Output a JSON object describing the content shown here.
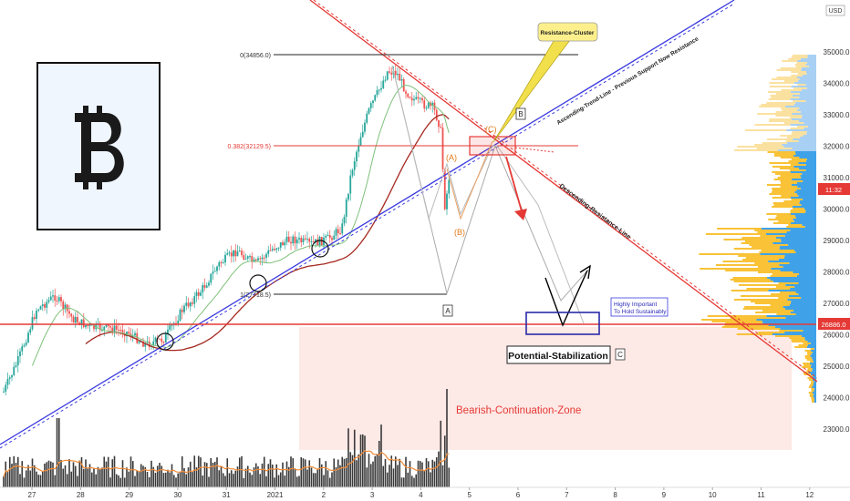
{
  "chart_data": {
    "type": "candlestick",
    "currency": "USD",
    "price_axis": {
      "min": 23000,
      "max": 35000,
      "ticks": [
        "35000.0",
        "34000.0",
        "33000.0",
        "32000.0",
        "31000.0",
        "30000.0",
        "29000.0",
        "28000.0",
        "27000.0",
        "26000.0",
        "25000.0",
        "24000.0",
        "23000.0"
      ]
    },
    "time_axis": {
      "ticks": [
        "27",
        "28",
        "29",
        "30",
        "31",
        "2021",
        "2",
        "3",
        "4",
        "5",
        "6",
        "7",
        "8",
        "9",
        "10",
        "11",
        "12"
      ]
    },
    "current_price": "11:32",
    "horizontal_support": "26886.0",
    "fibonacci": [
      {
        "label": "0(34856.0)",
        "value": 34856.0
      },
      {
        "label": "0.382(32129.5)",
        "value": 32129.5
      },
      {
        "label": "1(27718.5)",
        "value": 27718.5
      }
    ],
    "wave_labels": [
      "(A)",
      "(B)",
      "(C)",
      "A",
      "B",
      "C"
    ],
    "annotations": {
      "resistance_cluster": "Resistance-Cluster",
      "ascending_line": "Ascending-Trend-Line - Previous Support Now Resistance",
      "descending_line": "Descending-Resistance-Line",
      "potential_stabilization": "Potential-Stabilization",
      "highly_important_1": "Highly Important",
      "highly_important_2": "To Hold Sustainably",
      "bearish_zone": "Bearish-Continuation-Zone"
    },
    "colors": {
      "bull": "#26a69a",
      "bear": "#ef5350",
      "resistance": "#e53935",
      "ascending": "#3a3ae0",
      "vp_blue": "#3fa2e8",
      "vp_yellow": "#f9c237",
      "zone": "#fde9e6"
    }
  }
}
